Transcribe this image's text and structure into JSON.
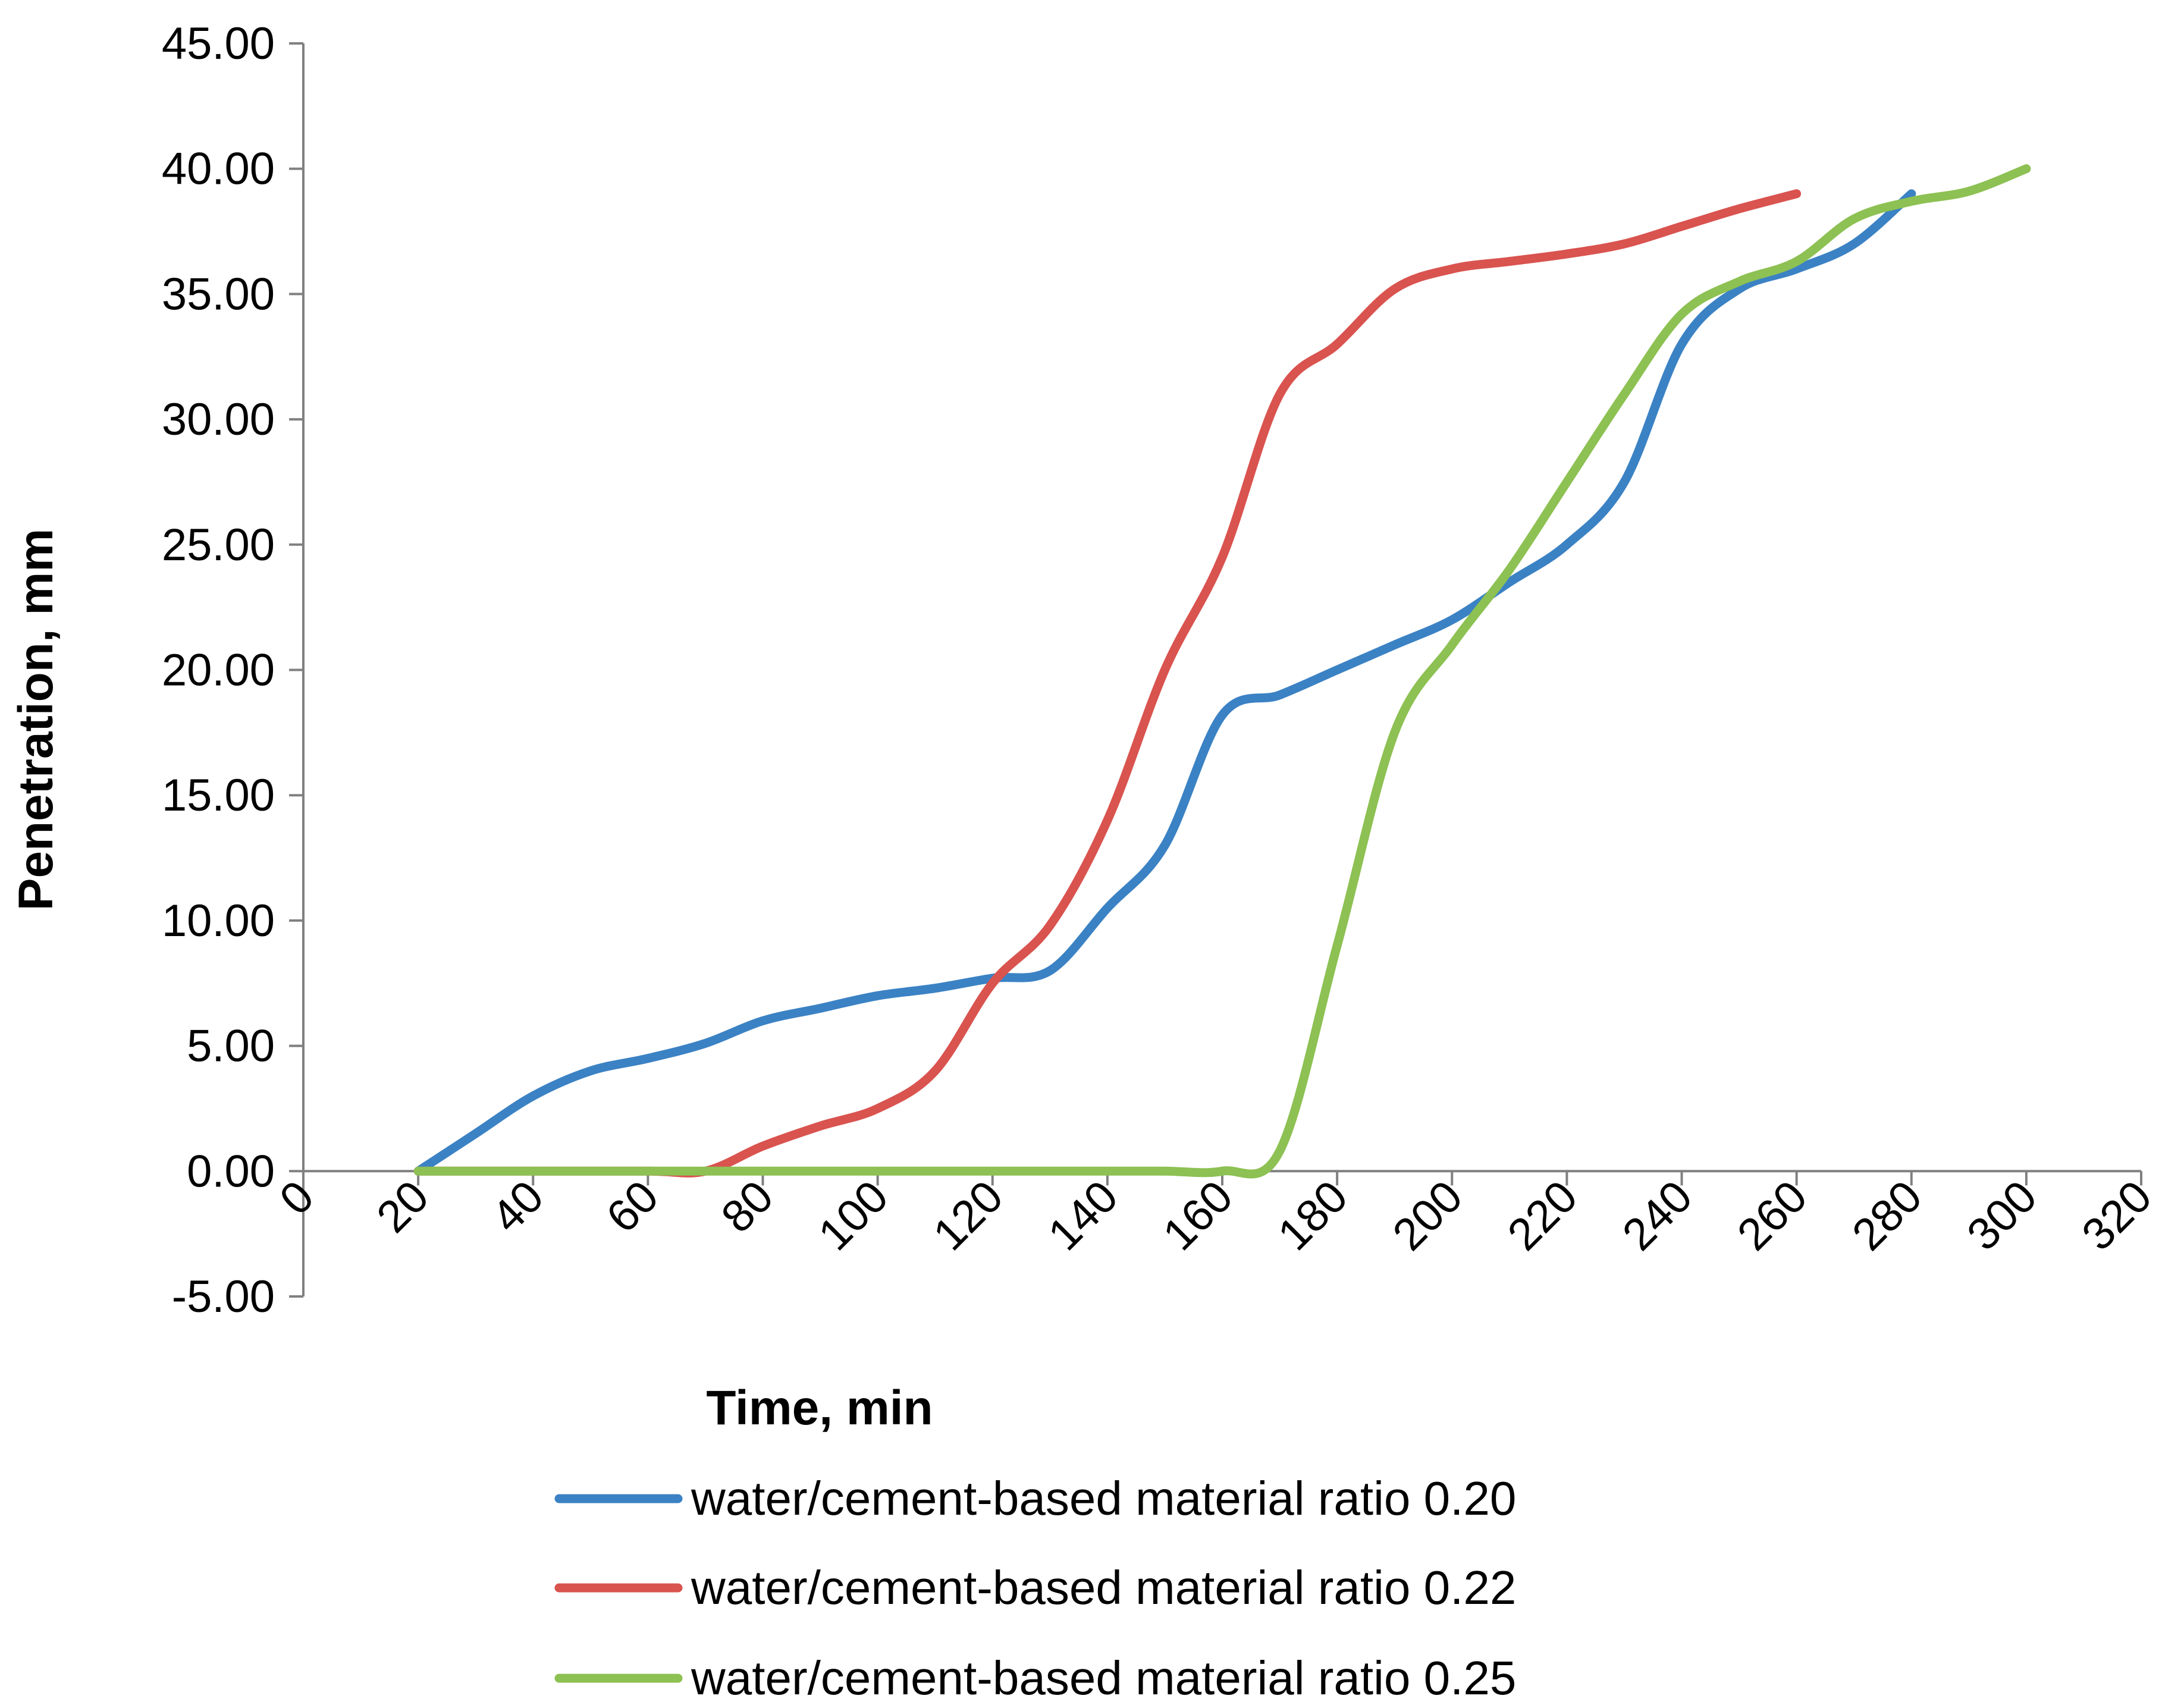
{
  "chart_data": {
    "type": "line",
    "title": "",
    "xlabel": "Time, min",
    "ylabel": "Penetration, mm",
    "xlim": [
      0,
      320
    ],
    "ylim": [
      -5,
      45
    ],
    "x_ticks": [
      0,
      20,
      40,
      60,
      80,
      100,
      120,
      140,
      160,
      180,
      200,
      220,
      240,
      260,
      280,
      300,
      320
    ],
    "x_tick_labels": [
      "0",
      "20",
      "40",
      "60",
      "80",
      "100",
      "120",
      "140",
      "160",
      "180",
      "200",
      "220",
      "240",
      "260",
      "280",
      "300",
      "320"
    ],
    "y_ticks": [
      -5,
      0,
      5,
      10,
      15,
      20,
      25,
      30,
      35,
      40,
      45
    ],
    "y_tick_labels": [
      "-5.00",
      "0.00",
      "5.00",
      "10.00",
      "15.00",
      "20.00",
      "25.00",
      "30.00",
      "35.00",
      "40.00",
      "45.00"
    ],
    "grid": false,
    "legend_position": "bottom",
    "series": [
      {
        "name": "water/cement-based material ratio 0.20",
        "color": "#3B82C4",
        "points": [
          [
            20,
            0
          ],
          [
            30,
            1.5
          ],
          [
            40,
            3
          ],
          [
            50,
            4
          ],
          [
            60,
            4.5
          ],
          [
            70,
            5.1
          ],
          [
            80,
            6
          ],
          [
            90,
            6.5
          ],
          [
            100,
            7
          ],
          [
            110,
            7.3
          ],
          [
            120,
            7.7
          ],
          [
            130,
            8
          ],
          [
            140,
            10.5
          ],
          [
            150,
            13
          ],
          [
            160,
            18.2
          ],
          [
            170,
            19
          ],
          [
            180,
            20
          ],
          [
            190,
            21
          ],
          [
            200,
            22
          ],
          [
            210,
            23.5
          ],
          [
            220,
            25
          ],
          [
            230,
            27.5
          ],
          [
            240,
            33
          ],
          [
            250,
            35.2
          ],
          [
            260,
            36
          ],
          [
            270,
            37
          ],
          [
            280,
            39
          ]
        ]
      },
      {
        "name": "water/cement-based material ratio 0.22",
        "color": "#D9534F",
        "points": [
          [
            20,
            0
          ],
          [
            40,
            0
          ],
          [
            60,
            0
          ],
          [
            70,
            0
          ],
          [
            80,
            1
          ],
          [
            90,
            1.8
          ],
          [
            100,
            2.5
          ],
          [
            110,
            4
          ],
          [
            120,
            7.5
          ],
          [
            130,
            9.8
          ],
          [
            140,
            14
          ],
          [
            150,
            20
          ],
          [
            160,
            24.5
          ],
          [
            170,
            31
          ],
          [
            180,
            33
          ],
          [
            190,
            35.2
          ],
          [
            200,
            36
          ],
          [
            210,
            36.3
          ],
          [
            220,
            36.6
          ],
          [
            230,
            37
          ],
          [
            240,
            37.7
          ],
          [
            250,
            38.4
          ],
          [
            260,
            39
          ]
        ]
      },
      {
        "name": "water/cement-based material ratio 0.25",
        "color": "#8DC153",
        "points": [
          [
            20,
            0
          ],
          [
            40,
            0
          ],
          [
            60,
            0
          ],
          [
            80,
            0
          ],
          [
            100,
            0
          ],
          [
            120,
            0
          ],
          [
            140,
            0
          ],
          [
            150,
            0
          ],
          [
            160,
            0
          ],
          [
            170,
            0.8
          ],
          [
            180,
            9
          ],
          [
            190,
            17.5
          ],
          [
            200,
            21
          ],
          [
            210,
            24
          ],
          [
            220,
            27.5
          ],
          [
            230,
            31
          ],
          [
            240,
            34.2
          ],
          [
            250,
            35.5
          ],
          [
            260,
            36.3
          ],
          [
            270,
            38
          ],
          [
            280,
            38.7
          ],
          [
            290,
            39.1
          ],
          [
            300,
            40
          ]
        ]
      }
    ]
  }
}
